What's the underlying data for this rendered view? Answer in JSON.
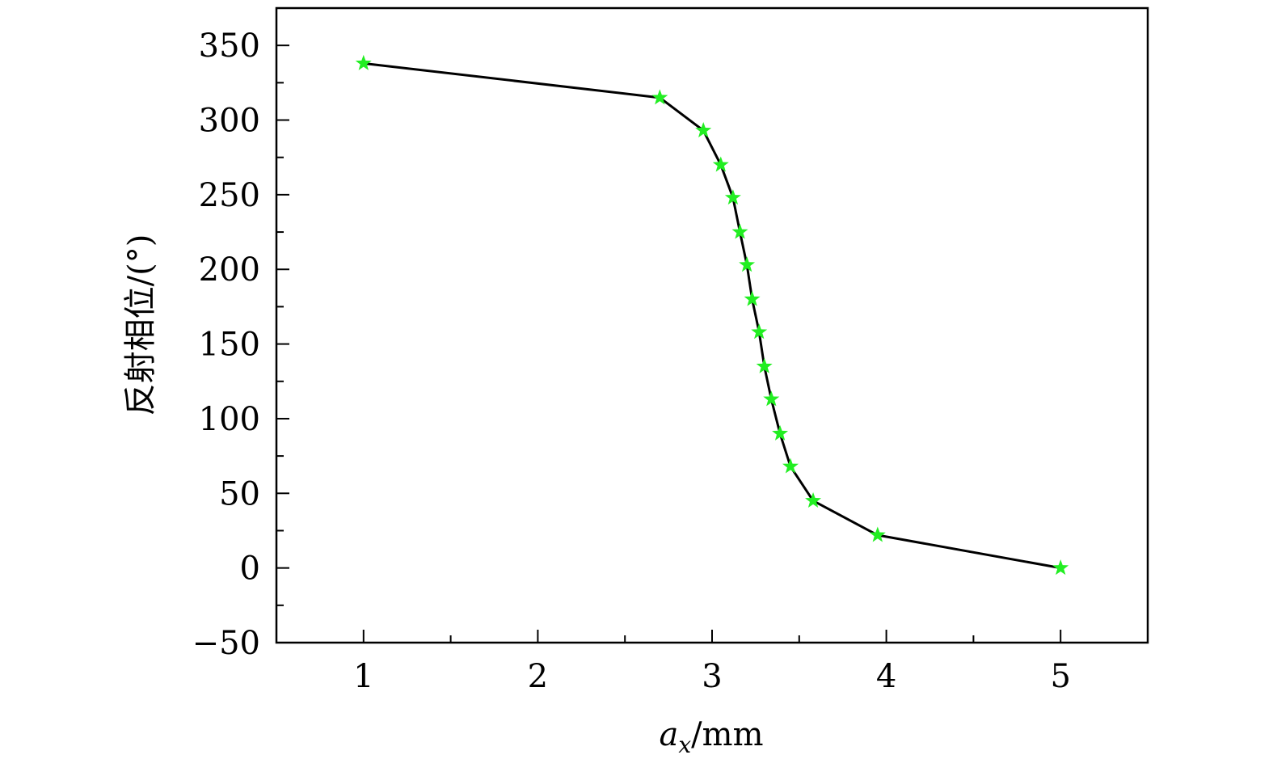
{
  "chart_data": {
    "type": "line",
    "xlabel_base": "a",
    "xlabel_sub": "x",
    "xlabel_unit": "/mm",
    "ylabel": "反射相位/(°)",
    "xlim": [
      0.5,
      5.5
    ],
    "ylim": [
      -50,
      375
    ],
    "x_ticks": [
      1,
      2,
      3,
      4,
      5
    ],
    "x_tick_labels": [
      "1",
      "2",
      "3",
      "4",
      "5"
    ],
    "x_minor_ticks": [
      1.5,
      2.5,
      3.5,
      4.5
    ],
    "y_ticks": [
      -50,
      0,
      50,
      100,
      150,
      200,
      250,
      300,
      350
    ],
    "y_tick_labels": [
      "−50",
      "0",
      "50",
      "100",
      "150",
      "200",
      "250",
      "300",
      "350"
    ],
    "y_minor_ticks": [
      -25,
      25,
      75,
      125,
      175,
      225,
      275,
      325
    ],
    "grid": false,
    "marker": "star",
    "colors": {
      "line": "#000000",
      "marker": "#22ee22",
      "axes": "#000000"
    },
    "series": [
      {
        "x": [
          1.0,
          2.7,
          2.95,
          3.05,
          3.12,
          3.16,
          3.2,
          3.23,
          3.27,
          3.3,
          3.34,
          3.39,
          3.45,
          3.58,
          3.95,
          5.0
        ],
        "y": [
          338,
          315,
          293,
          270,
          248,
          225,
          203,
          180,
          158,
          135,
          113,
          90,
          68,
          45,
          22,
          0
        ]
      }
    ]
  }
}
